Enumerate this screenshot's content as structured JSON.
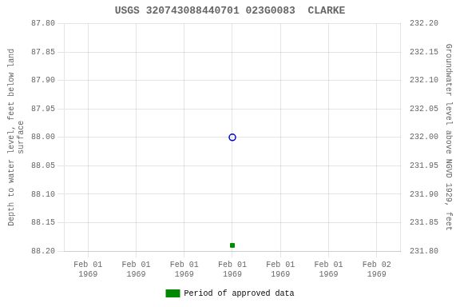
{
  "chart_data": {
    "type": "scatter",
    "title": "USGS 320743088440701 023G0083  CLARKE",
    "ylabel": "Depth to water level, feet below land\nsurface",
    "y2label": "Groundwater level above NGVD 1929, feet",
    "categories": [
      "Feb 01\n1969",
      "Feb 01\n1969",
      "Feb 01\n1969",
      "Feb 01\n1969",
      "Feb 01\n1969",
      "Feb 01\n1969",
      "Feb 02\n1969"
    ],
    "series": [
      {
        "color": "#0000cc",
        "marker": "circle",
        "values": [
          null,
          null,
          null,
          88.0,
          null,
          null,
          null
        ]
      },
      {
        "name": "Period of approved data",
        "color": "#008800",
        "marker": "square",
        "values": [
          null,
          null,
          null,
          88.19,
          null,
          null,
          null
        ]
      }
    ],
    "ylim": [
      88.2,
      87.8
    ],
    "yticks": [
      {
        "value": 87.8,
        "label": "87.80"
      },
      {
        "value": 87.85,
        "label": "87.85"
      },
      {
        "value": 87.9,
        "label": "87.90"
      },
      {
        "value": 87.95,
        "label": "87.95"
      },
      {
        "value": 88.0,
        "label": "88.00"
      },
      {
        "value": 88.05,
        "label": "88.05"
      },
      {
        "value": 88.1,
        "label": "88.10"
      },
      {
        "value": 88.15,
        "label": "88.15"
      },
      {
        "value": 88.2,
        "label": "88.20"
      }
    ],
    "y2lim": [
      231.8,
      232.2
    ],
    "y2ticks": [
      {
        "value": 232.2,
        "label": "232.20"
      },
      {
        "value": 232.15,
        "label": "232.15"
      },
      {
        "value": 232.1,
        "label": "232.10"
      },
      {
        "value": 232.05,
        "label": "232.05"
      },
      {
        "value": 232.0,
        "label": "232.00"
      },
      {
        "value": 231.95,
        "label": "231.95"
      },
      {
        "value": 231.9,
        "label": "231.90"
      },
      {
        "value": 231.85,
        "label": "231.85"
      },
      {
        "value": 231.8,
        "label": "231.80"
      }
    ],
    "grid": true,
    "legend": "bottom"
  }
}
